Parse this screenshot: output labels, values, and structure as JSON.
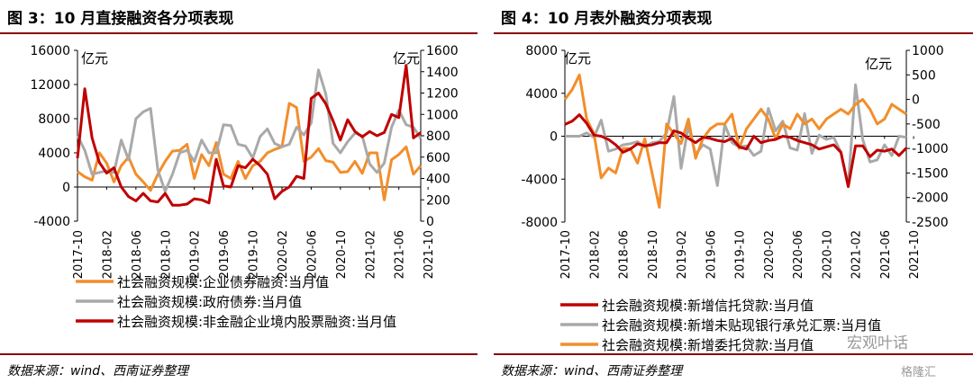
{
  "colors": {
    "orange": "#f28e2b",
    "gray": "#a9a9a9",
    "red": "#c00000",
    "rule": "#8b0000"
  },
  "left": {
    "title": "图 3：10 月直接融资各分项表现",
    "source": "数据来源：wind、西南证券整理",
    "chart_data": {
      "type": "line",
      "unit_left": "亿元",
      "unit_right": "亿元",
      "y_left": {
        "min": -4000,
        "max": 16000,
        "ticks": [
          -4000,
          0,
          4000,
          8000,
          12000,
          16000
        ]
      },
      "y_right": {
        "min": 0,
        "max": 1600,
        "ticks": [
          0,
          200,
          400,
          600,
          800,
          1000,
          1200,
          1400,
          1600
        ]
      },
      "x_ticks": [
        "2017-10",
        "2018-02",
        "2018-06",
        "2018-10",
        "2019-02",
        "2019-06",
        "2019-10",
        "2020-02",
        "2020-06",
        "2020-10",
        "2021-02",
        "2021-06",
        "2021-10"
      ],
      "series": [
        {
          "name": "社会融资规模:企业债券融资:当月值",
          "axis": "left",
          "color_key": "orange",
          "values": [
            1800,
            1200,
            800,
            4000,
            2800,
            600,
            2500,
            3500,
            1500,
            600,
            -400,
            1500,
            3000,
            4200,
            4300,
            5000,
            1000,
            3800,
            2500,
            5200,
            1500,
            1000,
            3000,
            1000,
            2500,
            3000,
            4000,
            4400,
            4700,
            9800,
            9300,
            3000,
            3500,
            4500,
            3100,
            2900,
            1700,
            1800,
            3000,
            1600,
            4000,
            4000,
            -1500,
            3200,
            3800,
            4700,
            1500,
            2500
          ]
        },
        {
          "name": "社会融资规模:政府债券:当月值",
          "axis": "left",
          "color_key": "gray",
          "values": [
            6000,
            4300,
            1500,
            1700,
            1900,
            1700,
            5500,
            3200,
            8000,
            8800,
            9200,
            2000,
            -500,
            1500,
            4000,
            4300,
            3000,
            5500,
            4000,
            4000,
            7300,
            7200,
            5000,
            4800,
            3400,
            5900,
            6800,
            5100,
            4700,
            5000,
            7000,
            6100,
            7500,
            13700,
            10900,
            5100,
            4000,
            5300,
            6300,
            6000,
            2700,
            1700,
            2800,
            7000,
            9000,
            7300,
            7000,
            5700
          ]
        },
        {
          "name": "社会融资规模:非金融企业境内股票融资:当月值",
          "axis": "right",
          "color_key": "red",
          "values": [
            590,
            1240,
            780,
            550,
            450,
            500,
            320,
            230,
            190,
            260,
            190,
            180,
            260,
            150,
            150,
            160,
            210,
            200,
            170,
            580,
            330,
            320,
            520,
            500,
            580,
            520,
            440,
            210,
            280,
            320,
            420,
            400,
            1150,
            1200,
            1100,
            940,
            760,
            950,
            840,
            790,
            840,
            800,
            830,
            1000,
            970,
            1460,
            780,
            830
          ]
        }
      ]
    }
  },
  "right": {
    "title": "图 4：10 月表外融资分项表现",
    "source": "数据来源：wind、西南证券整理",
    "chart_data": {
      "type": "line",
      "unit_left": "亿元",
      "unit_right": "亿元",
      "y_left": {
        "min": -8000,
        "max": 8000,
        "ticks": [
          -8000,
          -4000,
          0,
          4000,
          8000
        ]
      },
      "y_right": {
        "min": -2500,
        "max": 1000,
        "ticks": [
          -2500,
          -2000,
          -1500,
          -1000,
          -500,
          0,
          500,
          1000
        ]
      },
      "x_ticks": [
        "2017-10",
        "2018-02",
        "2018-06",
        "2018-10",
        "2019-02",
        "2019-06",
        "2019-10",
        "2020-02",
        "2020-06",
        "2020-10",
        "2021-02",
        "2021-06",
        "2021-10"
      ],
      "series": [
        {
          "name": "社会融资规模:新增信托贷款:当月值",
          "axis": "left",
          "color_key": "red",
          "values": [
            1100,
            1400,
            2000,
            1200,
            100,
            0,
            -300,
            -800,
            -1500,
            -1200,
            -700,
            -900,
            -800,
            -600,
            -600,
            500,
            300,
            -200,
            -600,
            -100,
            -200,
            -400,
            -500,
            -200,
            -1000,
            -1200,
            0,
            -600,
            -400,
            -300,
            0,
            -100,
            -400,
            -600,
            -800,
            -1200,
            -1000,
            -800,
            -1500,
            -4700,
            -900,
            -900,
            -1900,
            -1300,
            -1400,
            -1200,
            -1800,
            -1100
          ]
        },
        {
          "name": "社会融资规模:新增未贴现银行承兑汇票:当月值",
          "axis": "left",
          "color_key": "gray",
          "values": [
            0,
            0,
            0,
            300,
            -100,
            1500,
            -1400,
            -1200,
            -800,
            -700,
            -500,
            -1000,
            -600,
            -500,
            300,
            3700,
            -3000,
            1000,
            -1700,
            -800,
            -1200,
            -4600,
            1100,
            -600,
            -1000,
            -900,
            -1800,
            -1400,
            2600,
            500,
            1400,
            -1100,
            -1300,
            2100,
            -1600,
            100,
            -300,
            -100,
            -1500,
            -4600,
            4800,
            -300,
            -2400,
            -2200,
            -800,
            -1800,
            0,
            -100
          ]
        },
        {
          "name": "社会融资规模:新增委托贷款:当月值",
          "axis": "right",
          "color_key": "orange",
          "values": [
            0,
            200,
            500,
            -400,
            -700,
            -1600,
            -1400,
            -1500,
            -1000,
            -1000,
            -1300,
            -800,
            -1500,
            -2200,
            -500,
            -700,
            -900,
            -400,
            -1200,
            -800,
            -600,
            -500,
            -500,
            -300,
            -1000,
            -600,
            -400,
            -200,
            -400,
            -800,
            -500,
            -600,
            -300,
            -500,
            -400,
            -600,
            -400,
            -300,
            -200,
            -300,
            -100,
            0,
            -200,
            -500,
            -400,
            -100,
            -200,
            -300
          ]
        }
      ]
    }
  },
  "watermark_left": "宏观叶话",
  "watermark_right": "格隆汇"
}
